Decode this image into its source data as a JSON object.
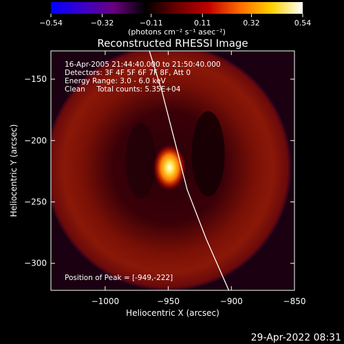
{
  "chart_data": {
    "type": "heatmap",
    "title": "Reconstructed RHESSI Image",
    "xlabel": "Heliocentric X (arcsec)",
    "ylabel": "Heliocentric Y (arcsec)",
    "xlim": [
      -1043,
      -850
    ],
    "ylim": [
      -322,
      -127
    ],
    "x_ticks": [
      -1000,
      -950,
      -900,
      -850
    ],
    "x_tick_labels": [
      "−1000",
      "−950",
      "−900",
      "−850"
    ],
    "y_ticks": [
      -150,
      -200,
      -250,
      -300
    ],
    "y_tick_labels": [
      "−150",
      "−200",
      "−250",
      "−300"
    ],
    "colorbar": {
      "range": [
        -0.54,
        0.54
      ],
      "ticks": [
        -0.54,
        -0.32,
        -0.11,
        0.11,
        0.32,
        0.54
      ],
      "tick_labels": [
        "−0.54",
        "−0.32",
        "−0.11",
        "0.11",
        "0.32",
        "0.54"
      ],
      "unit_label": "(photons cm⁻² s⁻¹ asec⁻²)",
      "colors": [
        "#0000ff",
        "#3b00c8",
        "#6a0080",
        "#000000",
        "#6a0000",
        "#c00000",
        "#ff6a00",
        "#ffd000",
        "#ffffff"
      ]
    },
    "annotations": [
      "16-Apr-2005 21:44:40.000 to 21:50:40.000",
      "Detectors: 3F 4F 5F 6F 7F 8F, Att 0",
      "Energy Range: 3.0 - 6.0 keV",
      "Clean     Total counts: 5.35E+04"
    ],
    "peak_label": "Position of Peak = [-949,-222]",
    "peak": [
      -949,
      -222
    ],
    "limb_curve": [
      [
        -965,
        -127
      ],
      [
        -955,
        -160
      ],
      [
        -945,
        -200
      ],
      [
        -935,
        -240
      ],
      [
        -920,
        -280
      ],
      [
        -902,
        -322
      ]
    ],
    "ring": {
      "center": [
        -950,
        -222
      ],
      "radius": 78,
      "level": 0.13
    },
    "timestamp": "29-Apr-2022 08:31"
  }
}
